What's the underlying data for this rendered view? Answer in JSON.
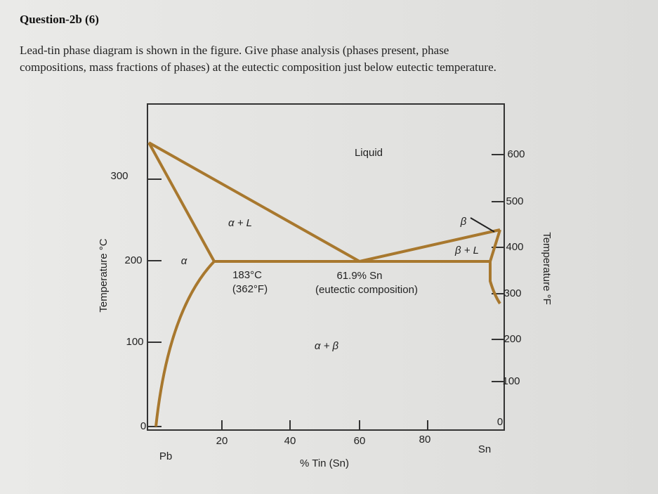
{
  "header": {
    "title": "Question-2b (6)"
  },
  "body": {
    "lines": [
      "Lead-tin phase diagram is shown in the figure. Give phase analysis (phases present, phase",
      "compositions, mass fractions of phases) at the eutectic composition just below eutectic temperature."
    ]
  },
  "figure": {
    "left_axis": {
      "label": "Temperature °C",
      "ticks": [
        "300",
        "200",
        "100",
        "0"
      ]
    },
    "right_axis": {
      "label": "Temperature °F",
      "ticks": [
        "600",
        "500",
        "400",
        "300",
        "200",
        "100",
        "0"
      ]
    },
    "bottom_axis": {
      "label": "% Tin (Sn)",
      "ticks": [
        "20",
        "40",
        "60",
        "80"
      ],
      "left_end": "Pb",
      "right_end": "Sn"
    },
    "regions": {
      "liquid": "Liquid",
      "alpha_liquid": "α + L",
      "alpha": "α",
      "beta": "β",
      "beta_liquid": "β + L",
      "alpha_beta": "α + β"
    },
    "annotations": {
      "eutectic_c": "183°C",
      "eutectic_f": "(362°F)",
      "eutectic_sn": "61.9% Sn",
      "eutectic_note": "(eutectic composition)"
    }
  }
}
